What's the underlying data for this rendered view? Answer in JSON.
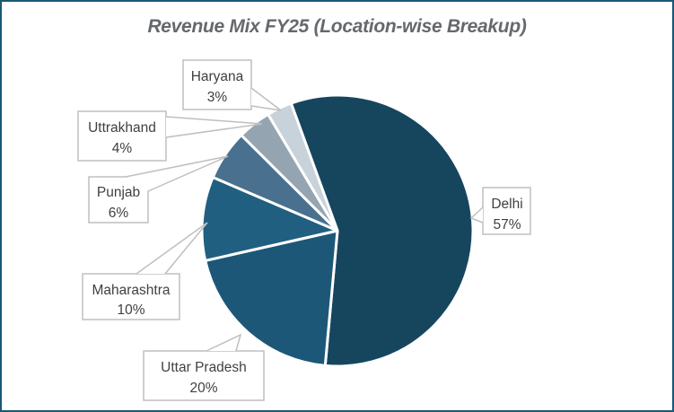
{
  "frame": {
    "border_color": "#1A5876",
    "background": "#FFFFFF"
  },
  "chart_data": {
    "type": "pie",
    "title": "Revenue Mix FY25 (Location-wise Breakup)",
    "title_color": "#66696C",
    "start_angle_deg": -20,
    "direction": "clockwise",
    "legend": "none",
    "label_style": "callout-boxes-with-leader-lines",
    "units": "percent",
    "slices": [
      {
        "label": "Delhi",
        "value": 57,
        "pct": "57%",
        "color": "#16465E"
      },
      {
        "label": "Uttar Pradesh",
        "value": 20,
        "pct": "20%",
        "color": "#1D5777"
      },
      {
        "label": "Maharashtra",
        "value": 10,
        "pct": "10%",
        "color": "#215F80"
      },
      {
        "label": "Punjab",
        "value": 6,
        "pct": "6%",
        "color": "#49708F"
      },
      {
        "label": "Uttrakhand",
        "value": 4,
        "pct": "4%",
        "color": "#95A4B1"
      },
      {
        "label": "Haryana",
        "value": 3,
        "pct": "3%",
        "color": "#C7D2DB"
      }
    ]
  }
}
